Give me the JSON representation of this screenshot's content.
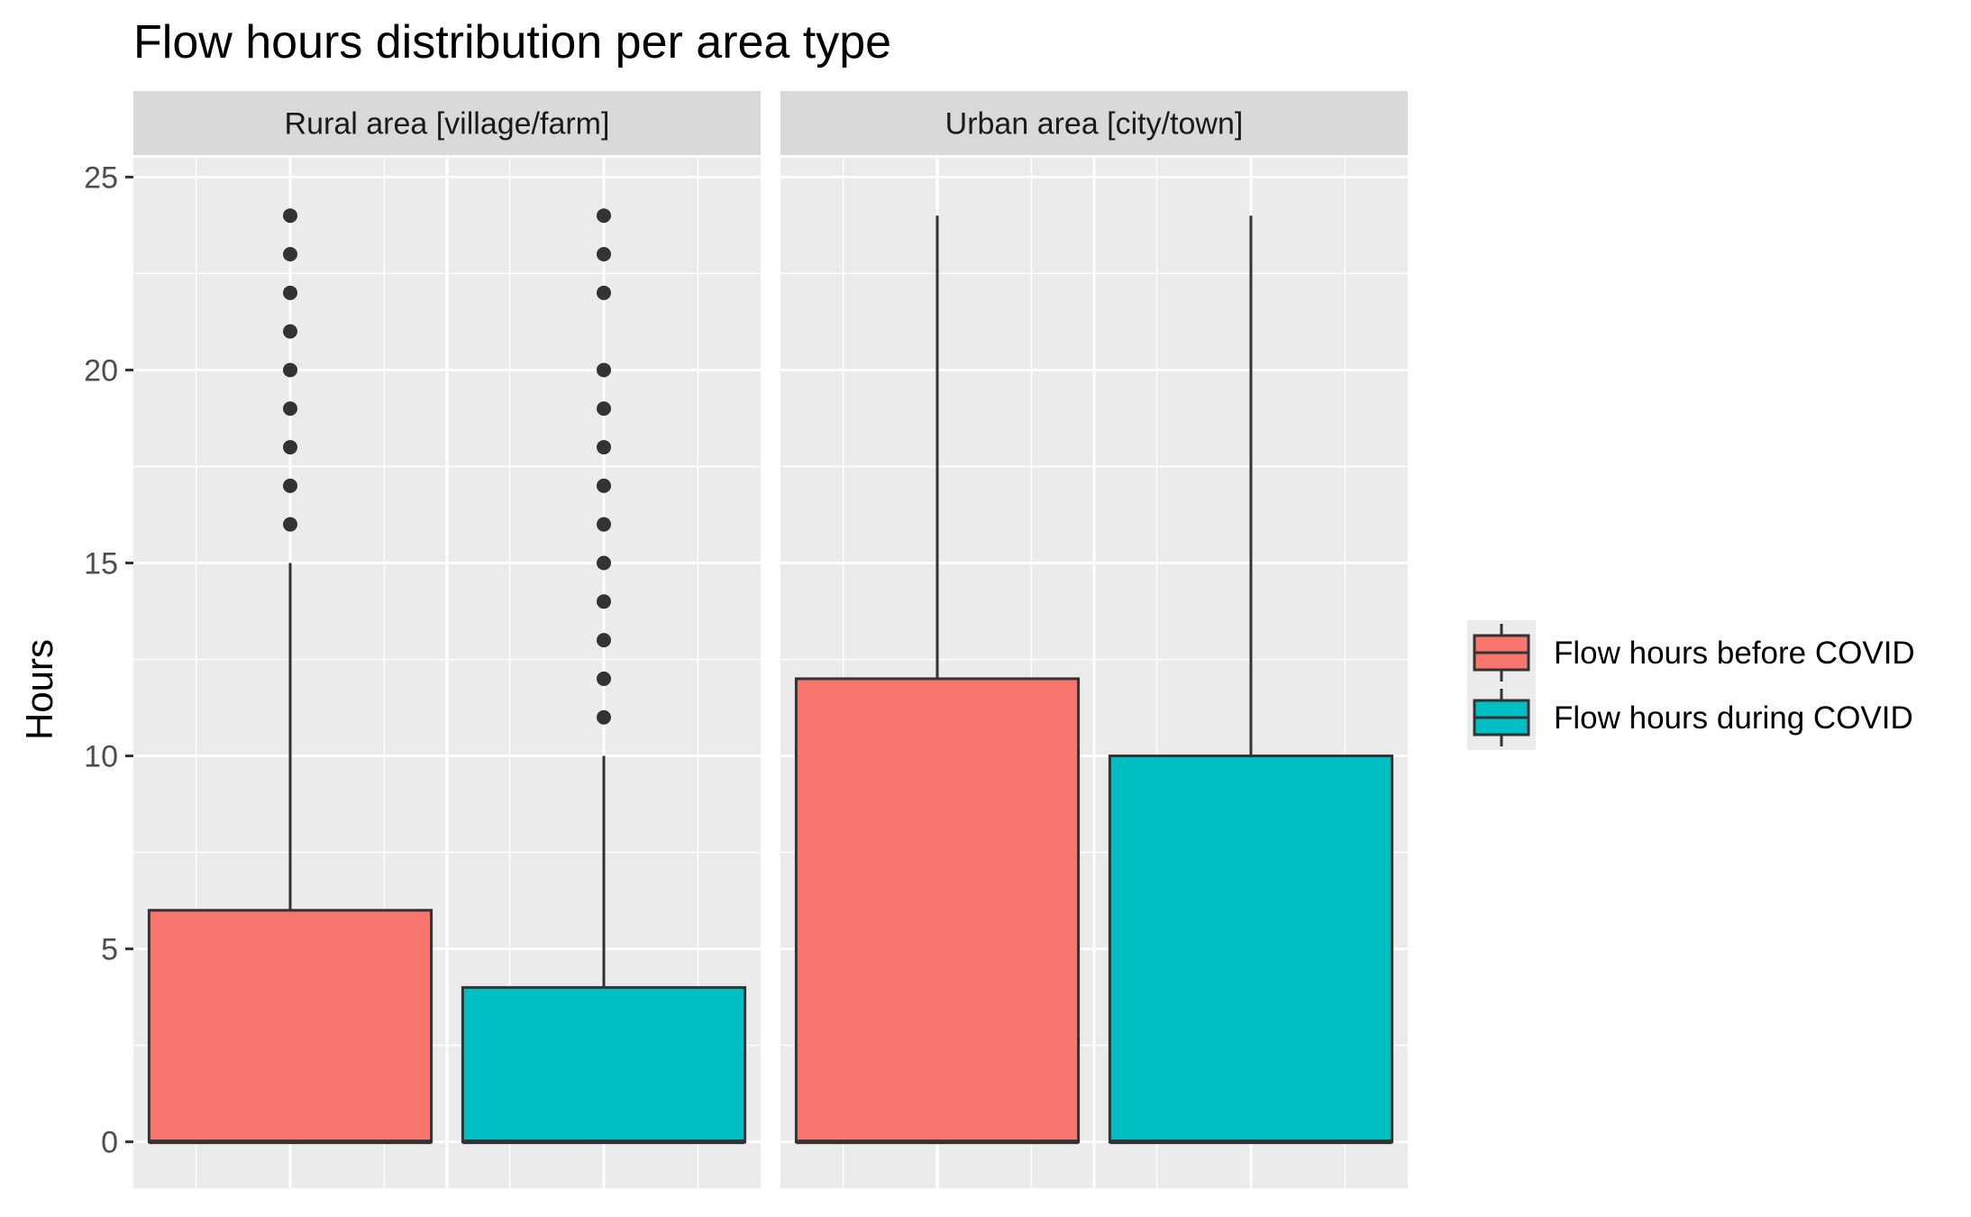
{
  "chart_data": {
    "type": "boxplot",
    "title": "Flow hours distribution per area type",
    "ylabel": "Hours",
    "xlabel": "",
    "ylim": [
      -1.2,
      25.5
    ],
    "yticks": [
      0,
      5,
      10,
      15,
      20,
      25
    ],
    "grid": true,
    "legend_position": "right",
    "colors": {
      "before": "#F8766D",
      "during": "#00BFC4",
      "panel_bg": "#EBEBEB",
      "strip_bg": "#D9D9D9",
      "outline": "#333333"
    },
    "series": [
      {
        "key": "before",
        "name": "Flow hours before COVID"
      },
      {
        "key": "during",
        "name": "Flow hours during COVID"
      }
    ],
    "panels": [
      {
        "label": "Rural area [village/farm]",
        "boxes": [
          {
            "series": "before",
            "min": 0,
            "q1": 0,
            "median": 0,
            "q3": 6,
            "max": 15,
            "outliers": [
              16,
              17,
              18,
              19,
              20,
              21,
              22,
              23,
              24
            ]
          },
          {
            "series": "during",
            "min": 0,
            "q1": 0,
            "median": 0,
            "q3": 4,
            "max": 10,
            "outliers": [
              11,
              12,
              13,
              14,
              15,
              16,
              17,
              18,
              19,
              20,
              22,
              23,
              24
            ]
          }
        ]
      },
      {
        "label": "Urban area [city/town]",
        "boxes": [
          {
            "series": "before",
            "min": 0,
            "q1": 0,
            "median": 0,
            "q3": 12,
            "max": 24,
            "outliers": []
          },
          {
            "series": "during",
            "min": 0,
            "q1": 0,
            "median": 0,
            "q3": 10,
            "max": 24,
            "outliers": []
          }
        ]
      }
    ]
  }
}
